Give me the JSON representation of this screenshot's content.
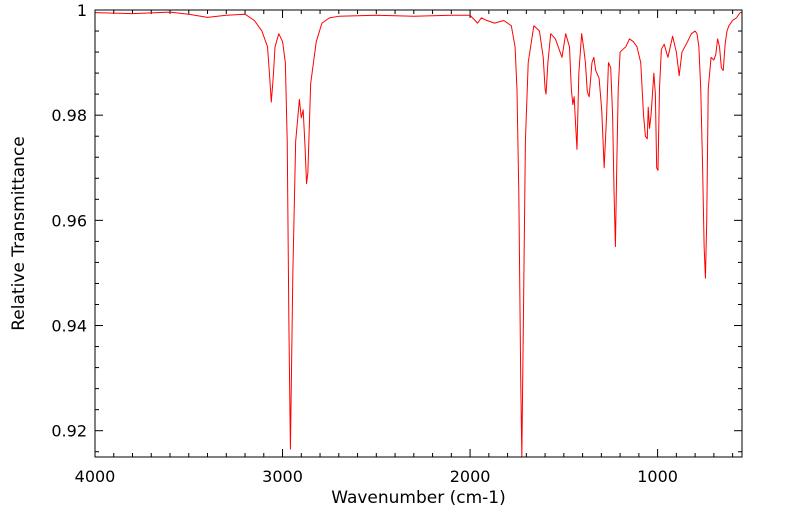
{
  "chart_data": {
    "type": "line",
    "title": "",
    "xlabel": "Wavenumber (cm-1)",
    "ylabel": "Relative Transmittance",
    "xlim": [
      4000,
      550
    ],
    "ylim": [
      0.915,
      1.0
    ],
    "x_ticks": [
      4000,
      3000,
      2000,
      1000
    ],
    "x_tick_labels": [
      "4000",
      "3000",
      "2000",
      "1000"
    ],
    "y_ticks": [
      1.0,
      0.98,
      0.96,
      0.94,
      0.92
    ],
    "y_tick_labels": [
      "1",
      "0.98",
      "0.96",
      "0.94",
      "0.92"
    ],
    "grid": false,
    "legend": "none",
    "series": [
      {
        "color": "#ff0000",
        "x": [
          4000,
          3800,
          3600,
          3500,
          3400,
          3300,
          3200,
          3150,
          3110,
          3080,
          3068,
          3060,
          3050,
          3040,
          3020,
          3000,
          2985,
          2975,
          2966,
          2958,
          2945,
          2930,
          2910,
          2900,
          2890,
          2880,
          2872,
          2865,
          2850,
          2820,
          2790,
          2750,
          2700,
          2500,
          2300,
          2100,
          2000,
          1960,
          1940,
          1910,
          1870,
          1820,
          1780,
          1760,
          1750,
          1740,
          1730,
          1724,
          1716,
          1705,
          1690,
          1660,
          1630,
          1610,
          1600,
          1595,
          1585,
          1570,
          1545,
          1530,
          1510,
          1490,
          1470,
          1460,
          1452,
          1445,
          1437,
          1430,
          1420,
          1405,
          1395,
          1385,
          1375,
          1365,
          1350,
          1340,
          1330,
          1312,
          1298,
          1285,
          1272,
          1262,
          1250,
          1240,
          1232,
          1225,
          1218,
          1210,
          1200,
          1185,
          1170,
          1150,
          1130,
          1110,
          1090,
          1075,
          1065,
          1055,
          1050,
          1043,
          1035,
          1020,
          1012,
          1005,
          998,
          990,
          980,
          965,
          945,
          920,
          900,
          885,
          870,
          855,
          840,
          820,
          800,
          790,
          780,
          770,
          760,
          752,
          745,
          738,
          730,
          715,
          700,
          690,
          680,
          670,
          660,
          650,
          640,
          630,
          620,
          600,
          580,
          560,
          550
        ],
        "y": [
          0.9995,
          0.9993,
          0.9996,
          0.9992,
          0.9986,
          0.999,
          0.9992,
          0.998,
          0.996,
          0.993,
          0.987,
          0.9825,
          0.987,
          0.993,
          0.9955,
          0.994,
          0.99,
          0.975,
          0.94,
          0.9165,
          0.95,
          0.975,
          0.983,
          0.9795,
          0.981,
          0.974,
          0.967,
          0.969,
          0.986,
          0.994,
          0.9975,
          0.9985,
          0.9988,
          0.999,
          0.9988,
          0.999,
          0.999,
          0.9975,
          0.9985,
          0.998,
          0.9975,
          0.998,
          0.997,
          0.993,
          0.985,
          0.965,
          0.93,
          0.915,
          0.94,
          0.975,
          0.99,
          0.997,
          0.996,
          0.991,
          0.985,
          0.984,
          0.99,
          0.9955,
          0.9945,
          0.993,
          0.991,
          0.9955,
          0.993,
          0.985,
          0.982,
          0.9835,
          0.978,
          0.9735,
          0.988,
          0.9955,
          0.993,
          0.99,
          0.9845,
          0.9835,
          0.99,
          0.991,
          0.9885,
          0.987,
          0.981,
          0.97,
          0.98,
          0.99,
          0.989,
          0.98,
          0.965,
          0.955,
          0.97,
          0.985,
          0.992,
          0.9925,
          0.993,
          0.9945,
          0.994,
          0.993,
          0.99,
          0.98,
          0.976,
          0.9755,
          0.9815,
          0.9775,
          0.98,
          0.988,
          0.984,
          0.97,
          0.9695,
          0.985,
          0.9925,
          0.9935,
          0.991,
          0.995,
          0.992,
          0.9875,
          0.992,
          0.993,
          0.994,
          0.9955,
          0.996,
          0.9955,
          0.993,
          0.985,
          0.97,
          0.955,
          0.949,
          0.96,
          0.985,
          0.991,
          0.9905,
          0.9915,
          0.9945,
          0.993,
          0.989,
          0.9885,
          0.9935,
          0.996,
          0.997,
          0.998,
          0.9985,
          0.9995,
          0.9995
        ]
      }
    ]
  }
}
